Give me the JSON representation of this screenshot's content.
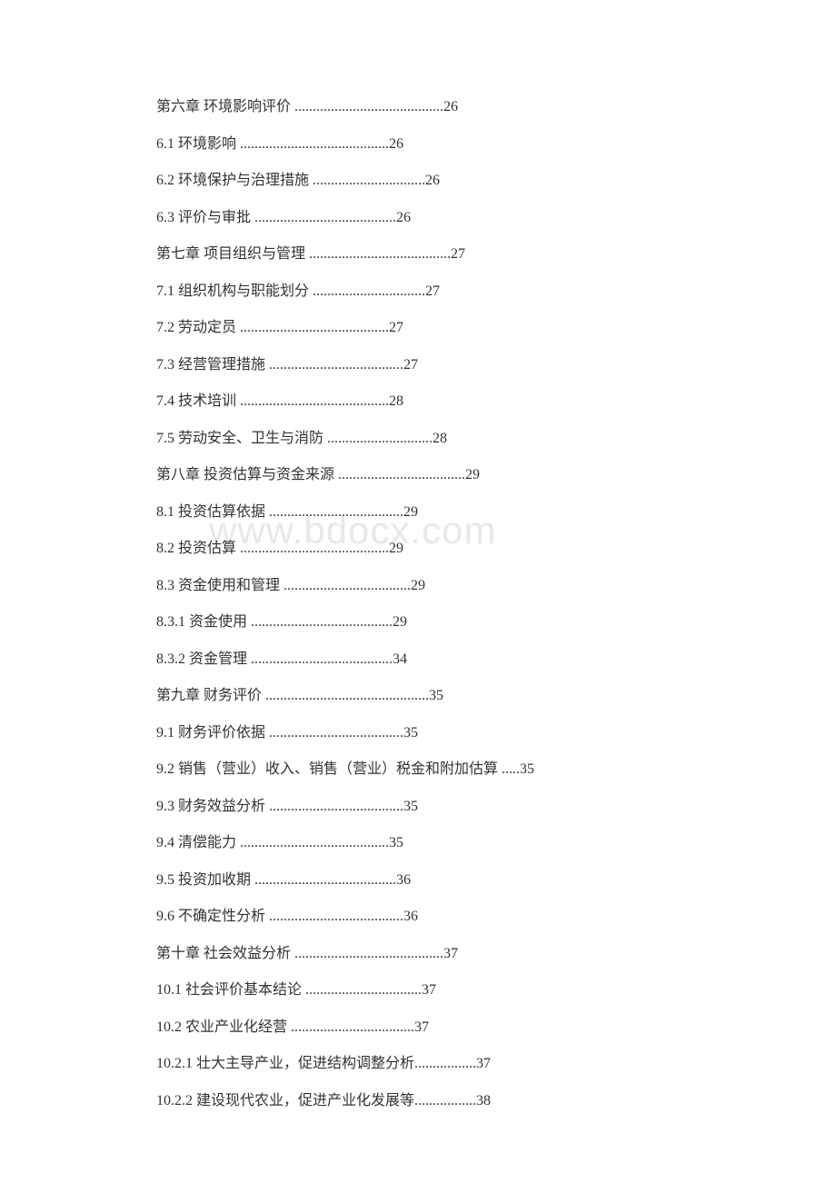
{
  "watermark": "www.bdocx.com",
  "toc_entries": [
    {
      "text": "第六章 环境影响评价 ",
      "dots": ".........................................",
      "page": "26"
    },
    {
      "text": "6.1 环境影响 ",
      "dots": ".........................................",
      "page": "26"
    },
    {
      "text": "6.2 环境保护与治理措施 ",
      "dots": "...............................",
      "page": "26"
    },
    {
      "text": "6.3 评价与审批 ",
      "dots": ".......................................",
      "page": "26"
    },
    {
      "text": "第七章 项目组织与管理 ",
      "dots": ".......................................",
      "page": "27"
    },
    {
      "text": "7.1 组织机构与职能划分 ",
      "dots": "...............................",
      "page": "27"
    },
    {
      "text": "7.2 劳动定员 ",
      "dots": ".........................................",
      "page": "27"
    },
    {
      "text": "7.3 经营管理措施 ",
      "dots": ".....................................",
      "page": "27"
    },
    {
      "text": "7.4 技术培训 ",
      "dots": ".........................................",
      "page": "28"
    },
    {
      "text": "7.5 劳动安全、卫生与消防 ",
      "dots": ".............................",
      "page": "28"
    },
    {
      "text": "第八章 投资估算与资金来源 ",
      "dots": "...................................",
      "page": "29"
    },
    {
      "text": "8.1 投资估算依据 ",
      "dots": ".....................................",
      "page": "29"
    },
    {
      "text": "8.2 投资估算 ",
      "dots": ".........................................",
      "page": "29"
    },
    {
      "text": "8.3 资金使用和管理 ",
      "dots": "...................................",
      "page": "29"
    },
    {
      "text": "8.3.1 资金使用 ",
      "dots": ".......................................",
      "page": "29"
    },
    {
      "text": "8.3.2 资金管理 ",
      "dots": ".......................................",
      "page": "34"
    },
    {
      "text": "第九章 财务评价 ",
      "dots": ".............................................",
      "page": "35"
    },
    {
      "text": "9.1 财务评价依据 ",
      "dots": ".....................................",
      "page": "35"
    },
    {
      "text": "9.2 销售（营业）收入、销售（营业）税金和附加估算 .....",
      "dots": "",
      "page": "35"
    },
    {
      "text": "9.3 财务效益分析 ",
      "dots": ".....................................",
      "page": "35"
    },
    {
      "text": "9.4 清偿能力 ",
      "dots": ".........................................",
      "page": "35"
    },
    {
      "text": "9.5 投资加收期 ",
      "dots": ".......................................",
      "page": "36"
    },
    {
      "text": "9.6 不确定性分析 ",
      "dots": ".....................................",
      "page": "36"
    },
    {
      "text": "第十章 社会效益分析 ",
      "dots": ".........................................",
      "page": "37"
    },
    {
      "text": "10.1 社会评价基本结论 ",
      "dots": "................................",
      "page": "37"
    },
    {
      "text": "10.2 农业产业化经营 ",
      "dots": "..................................",
      "page": "37"
    },
    {
      "text": "10.2.1 壮大主导产业，促进结构调整分析",
      "dots": ".................",
      "page": "37"
    },
    {
      "text": "10.2.2 建设现代农业，促进产业化发展等",
      "dots": ".................",
      "page": "38"
    }
  ]
}
